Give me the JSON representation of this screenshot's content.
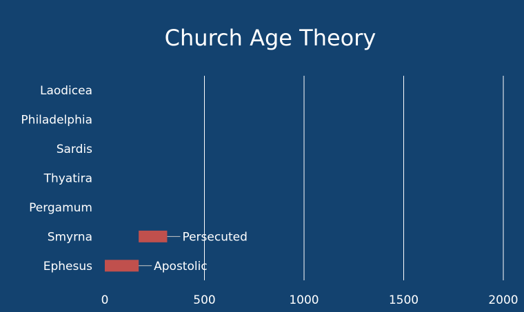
{
  "chart_data": {
    "type": "bar",
    "orientation": "horizontal",
    "stacked": true,
    "title": "Church Age Theory",
    "xlabel": "",
    "ylabel": "",
    "xlim": [
      0,
      2000
    ],
    "xticks": [
      0,
      500,
      1000,
      1500,
      2000
    ],
    "grid": true,
    "legend": "none",
    "categories": [
      "Ephesus",
      "Smyrna",
      "Pergamum",
      "Thyatira",
      "Sardis",
      "Philadelphia",
      "Laodicea"
    ],
    "series": [
      {
        "color": "#13426f",
        "values": [
          0,
          170,
          null,
          null,
          null,
          null,
          null
        ]
      },
      {
        "color": "#c0504d",
        "values": [
          170,
          143,
          null,
          null,
          null,
          null,
          null
        ],
        "data_labels": [
          "Apostolic",
          "Persecuted",
          "",
          "",
          "",
          "",
          ""
        ]
      }
    ]
  }
}
